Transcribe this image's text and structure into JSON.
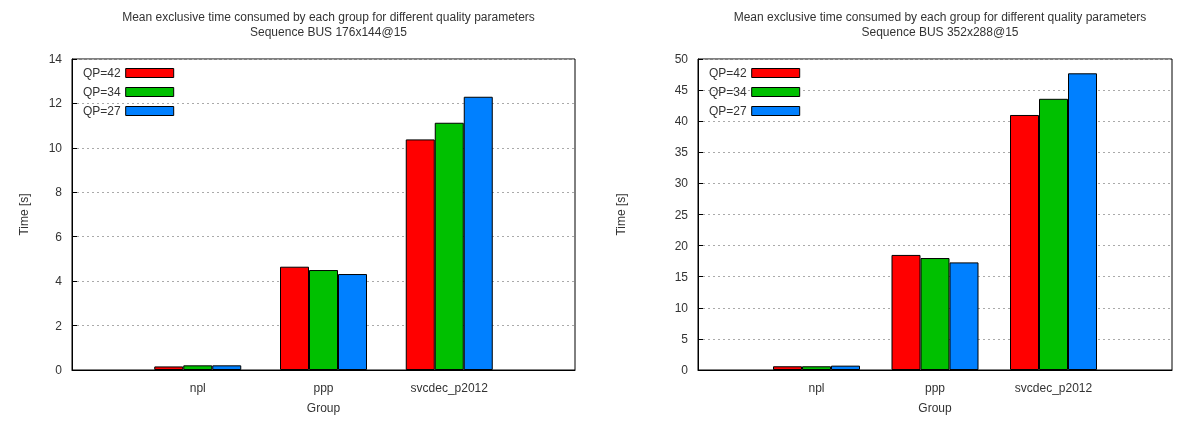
{
  "chart_data": [
    {
      "type": "bar",
      "title": "Mean exclusive time consumed by each group for different quality parameters",
      "subtitle": "Sequence BUS 176x144@15",
      "xlabel": "Group",
      "ylabel": "Time [s]",
      "categories": [
        "npl",
        "ppp",
        "svcdec_p2012"
      ],
      "series": [
        {
          "name": "QP=42",
          "color": "#ff0000",
          "values": [
            0.16,
            4.65,
            10.38
          ]
        },
        {
          "name": "QP=34",
          "color": "#00c000",
          "values": [
            0.21,
            4.5,
            11.13
          ]
        },
        {
          "name": "QP=27",
          "color": "#0080ff",
          "values": [
            0.21,
            4.32,
            12.3
          ]
        }
      ],
      "ylim": [
        0,
        14
      ],
      "yticks": [
        0,
        2,
        4,
        6,
        8,
        10,
        12,
        14
      ],
      "grid": "y",
      "legend": "top left"
    },
    {
      "type": "bar",
      "title": "Mean exclusive time consumed by each group for different quality parameters",
      "subtitle": "Sequence BUS 352x288@15",
      "xlabel": "Group",
      "ylabel": "Time [s]",
      "categories": [
        "npl",
        "ppp",
        "svcdec_p2012"
      ],
      "series": [
        {
          "name": "QP=42",
          "color": "#ff0000",
          "values": [
            0.6,
            18.5,
            41
          ]
        },
        {
          "name": "QP=34",
          "color": "#00c000",
          "values": [
            0.6,
            18,
            43.6
          ]
        },
        {
          "name": "QP=27",
          "color": "#0080ff",
          "values": [
            0.7,
            17.3,
            47.7
          ]
        }
      ],
      "ylim": [
        0,
        50
      ],
      "yticks": [
        0,
        5,
        10,
        15,
        20,
        25,
        30,
        35,
        40,
        45,
        50
      ],
      "grid": "y",
      "legend": "top left"
    }
  ]
}
